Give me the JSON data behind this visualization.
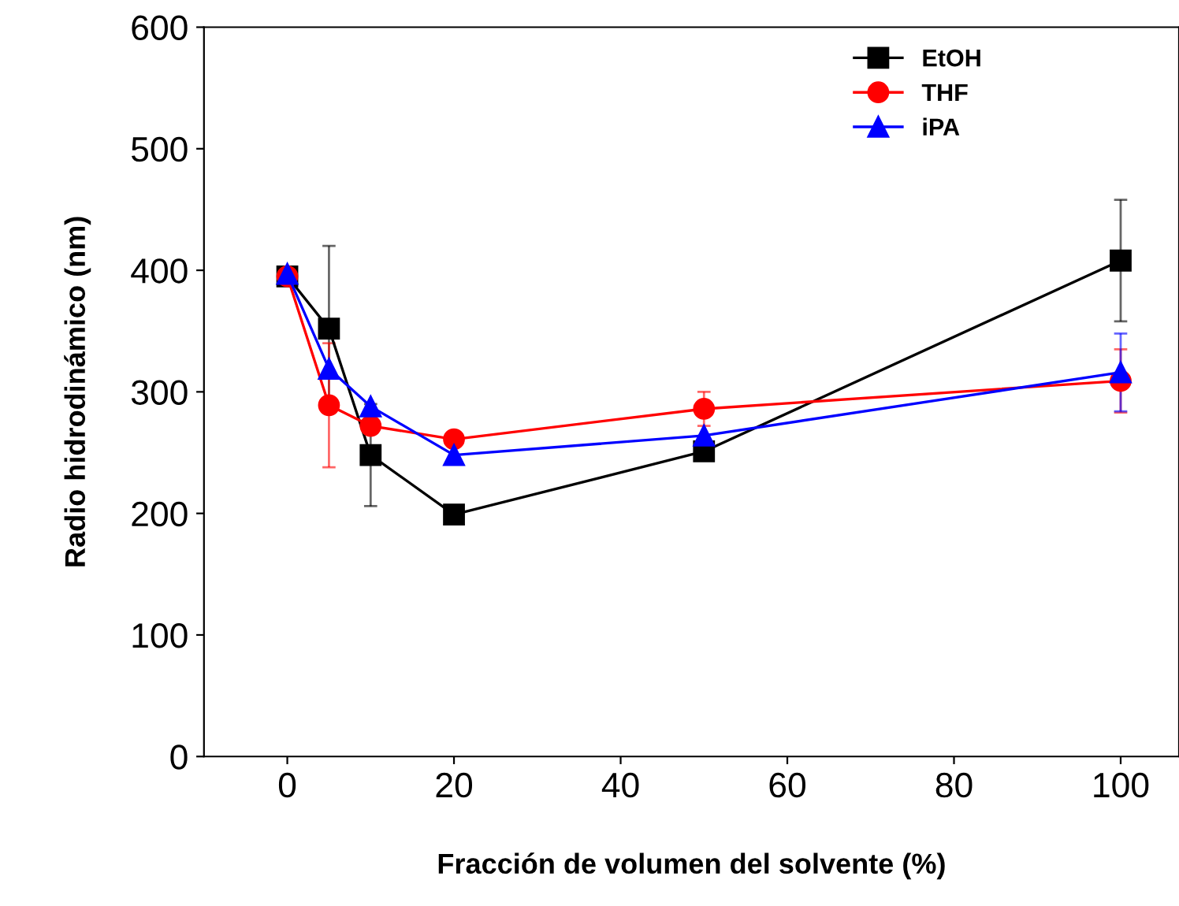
{
  "chart_data": {
    "type": "line",
    "xlabel": "Fracción de volumen del solvente (%)",
    "ylabel": "Radio hidrodinámico (nm)",
    "x": [
      0,
      5,
      10,
      20,
      50,
      100
    ],
    "series": [
      {
        "name": "EtOH",
        "color": "#000000",
        "marker": "square",
        "values": [
          395,
          352,
          248,
          199,
          251,
          408
        ],
        "errors": [
          null,
          68,
          42,
          null,
          null,
          50
        ]
      },
      {
        "name": "THF",
        "color": "#ff0000",
        "marker": "circle",
        "values": [
          395,
          289,
          272,
          261,
          286,
          309
        ],
        "errors": [
          null,
          51,
          null,
          null,
          14,
          26
        ]
      },
      {
        "name": "iPA",
        "color": "#0000ff",
        "marker": "triangle",
        "values": [
          397,
          319,
          288,
          248,
          264,
          316
        ],
        "errors": [
          null,
          null,
          null,
          null,
          null,
          32
        ]
      }
    ],
    "xlim": [
      -10,
      107
    ],
    "ylim": [
      0,
      600
    ],
    "xticks": [
      0,
      20,
      40,
      60,
      80,
      100
    ],
    "yticks": [
      0,
      100,
      200,
      300,
      400,
      500,
      600
    ],
    "legend": "top right",
    "grid": false
  }
}
